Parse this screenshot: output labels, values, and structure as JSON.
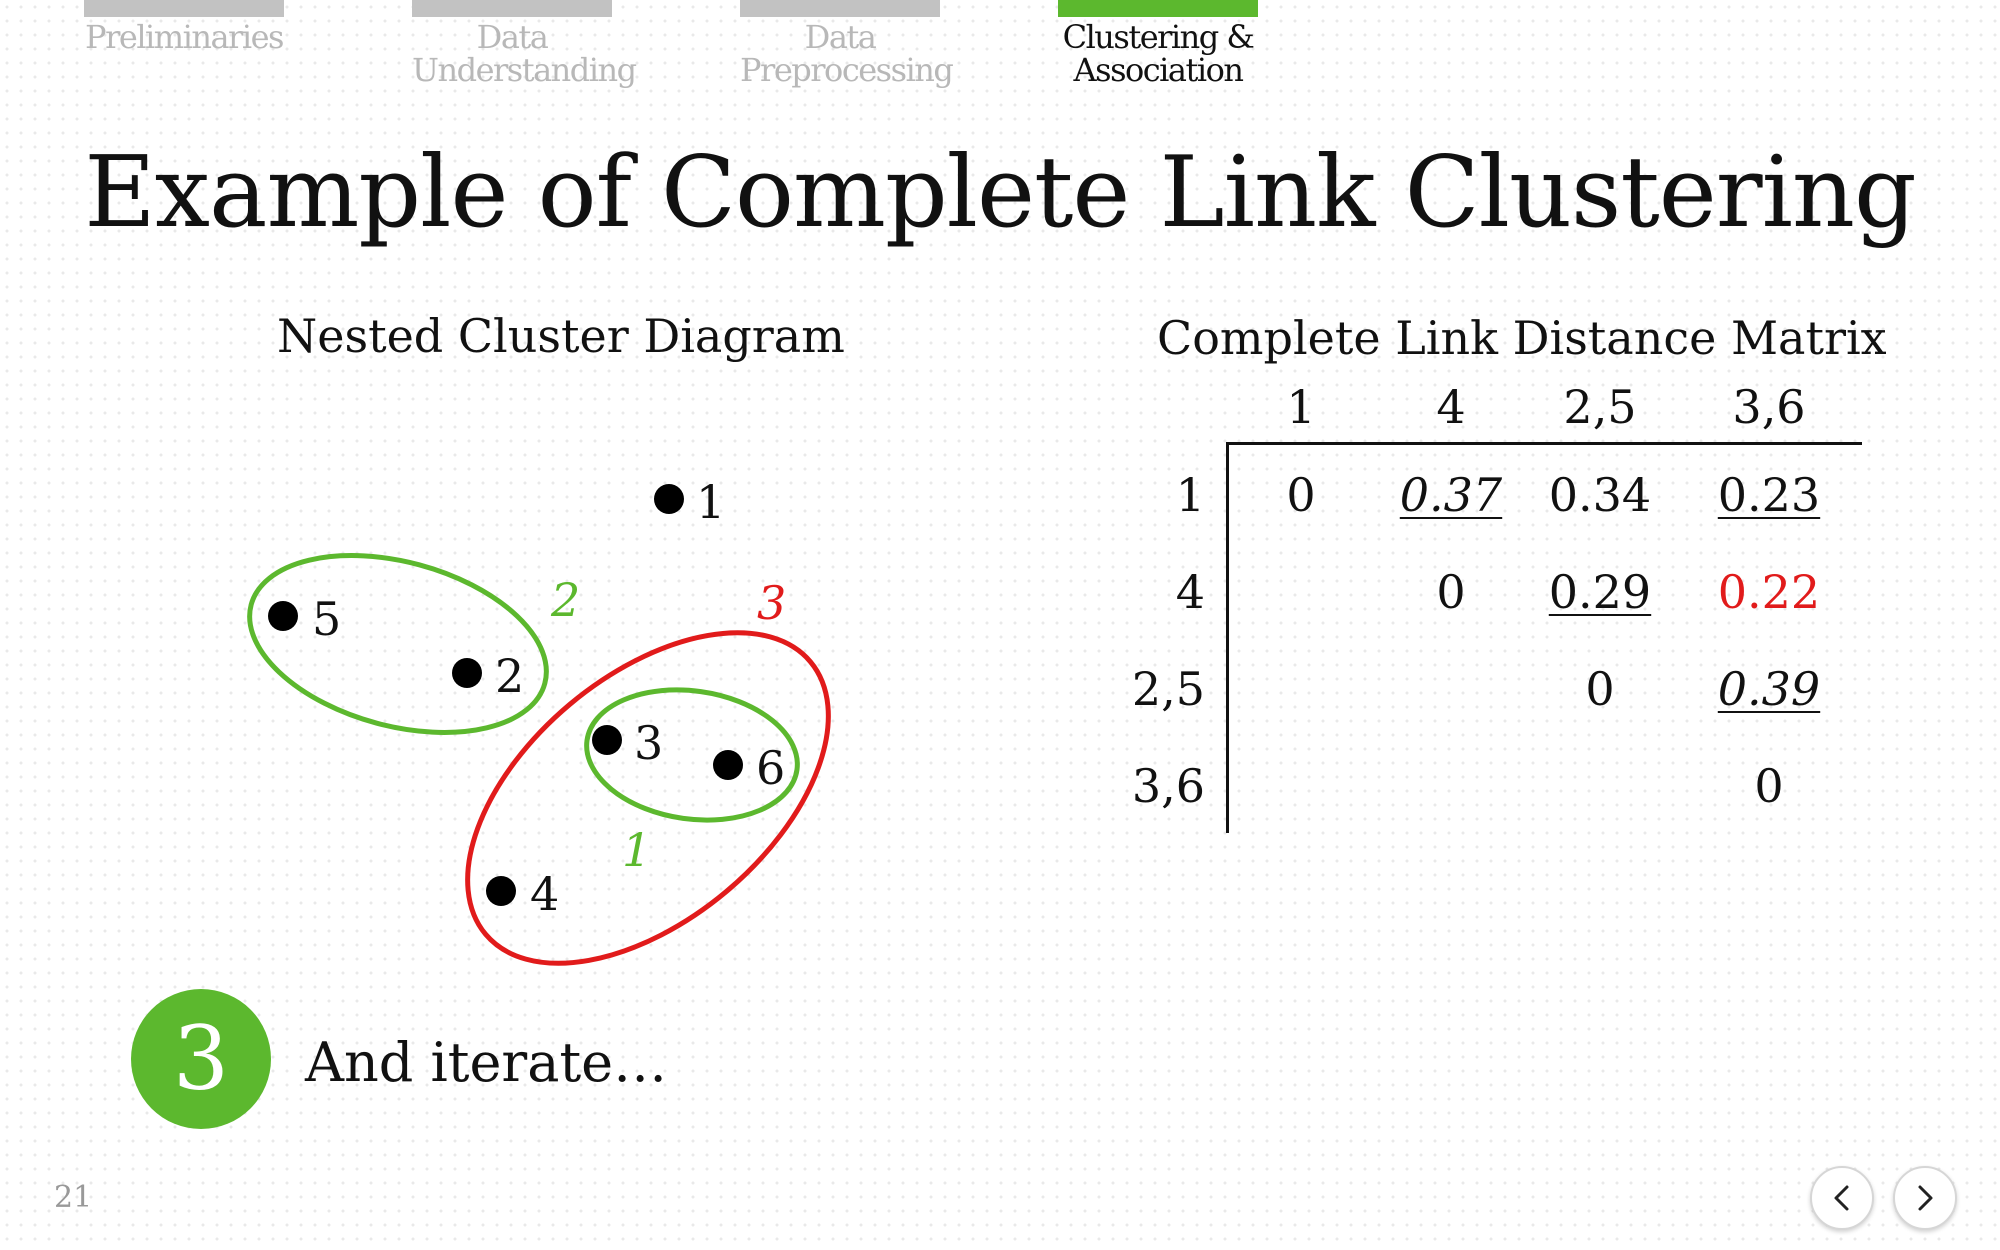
{
  "nav": {
    "tabs": [
      {
        "label": "Preliminaries",
        "active": false
      },
      {
        "label": "Data Understanding",
        "active": false
      },
      {
        "label": "Data Preprocessing",
        "active": false
      },
      {
        "label": "Clustering & Association",
        "active": true
      }
    ]
  },
  "title": "Example of Complete Link Clustering",
  "diagram": {
    "heading": "Nested Cluster Diagram",
    "points": [
      "1",
      "5",
      "2",
      "3",
      "6",
      "4"
    ],
    "cluster_labels": {
      "first": "1",
      "second": "2",
      "third": "3"
    },
    "colors": {
      "green": "#5cb82e",
      "red": "#e11b1b"
    }
  },
  "matrix": {
    "heading": "Complete Link Distance Matrix",
    "columns": [
      "1",
      "4",
      "2,5",
      "3,6"
    ],
    "rows": [
      {
        "label": "1",
        "cells": [
          "0",
          "0.37",
          "0.34",
          "0.23"
        ]
      },
      {
        "label": "4",
        "cells": [
          "",
          "0",
          "0.29",
          "0.22"
        ]
      },
      {
        "label": "2,5",
        "cells": [
          "",
          "",
          "0",
          "0.39"
        ]
      },
      {
        "label": "3,6",
        "cells": [
          "",
          "",
          "",
          "0"
        ]
      }
    ]
  },
  "step": {
    "number": "3",
    "text": "And iterate…"
  },
  "page_number": "21",
  "controls": {
    "prev_icon": "chevron-left-icon",
    "next_icon": "chevron-right-icon"
  }
}
